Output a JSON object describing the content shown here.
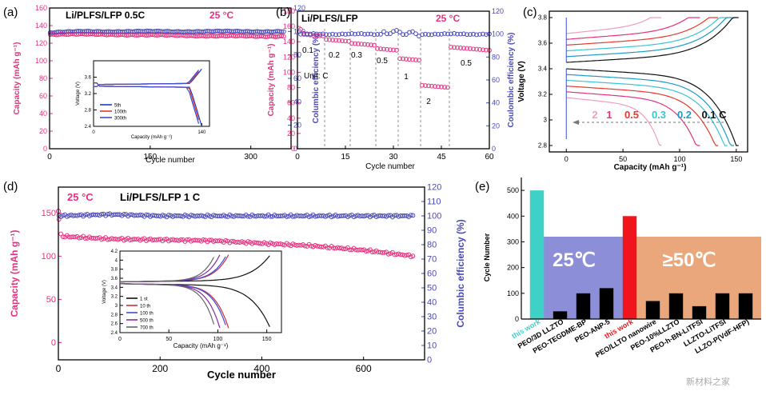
{
  "colors": {
    "magenta": "#e8317e",
    "blue": "#4a4ab8",
    "black": "#000000",
    "teal": "#3fd1c6",
    "red": "#f0151c",
    "blue_band": "#8c8fd8",
    "orange_band": "#e9a77b",
    "gray": "#777777"
  },
  "panels": {
    "a": {
      "label": "(a)",
      "title": "Li/PLFS/LFP  0.5C",
      "temp": "25 °C",
      "xlabel": "Cycle number",
      "ylabel_left": "Capacity (mAh g⁻¹)",
      "ylabel_right": "Columbic efficiency (%)",
      "inset": {
        "xlabel": "Capacity (mAh g⁻¹)",
        "ylabel": "Voltage (V)",
        "legend": [
          "5th",
          "100th",
          "300th"
        ]
      }
    },
    "b": {
      "label": "(b)",
      "title": "Li/PLFS/LFP",
      "temp": "25 °C",
      "unit": "Unit: C",
      "rates": [
        "0.1",
        "0.2",
        "0.3",
        "0.5",
        "1",
        "2",
        "0.5"
      ],
      "xlabel": "Cycle number",
      "ylabel_left": "Capacity (mAh g⁻¹)",
      "ylabel_right": "Coulombic efficiency (%)"
    },
    "c": {
      "label": "(c)",
      "xlabel": "Capacity (mAh g⁻¹)",
      "ylabel": "Voltage (V)",
      "rates": [
        "2",
        "1",
        "0.5",
        "0.3",
        "0.2",
        "0.1 C"
      ]
    },
    "d": {
      "label": "(d)",
      "temp": "25 °C",
      "title": "Li/PLFS/LFP   1 C",
      "xlabel": "Cycle number",
      "ylabel_left": "Capacity (mAh g⁻¹)",
      "ylabel_right": "Columbic efficiency (%)",
      "inset": {
        "xlabel": "Capacity (mAh g⁻¹)",
        "ylabel": "Voltage (V)",
        "legend": [
          "1 st",
          "10 th",
          "100 th",
          "500 th",
          "700 th"
        ]
      }
    },
    "e": {
      "label": "(e)",
      "ylabel": "Cycle Number",
      "band_25": "25℃",
      "band_50": "≥50℃",
      "categories": [
        "this work",
        "PEO/3D LLZTO",
        "PEO-TEGDME-BP",
        "PEO-ANP-5",
        "this work",
        "PEO/LLTO nanowire",
        "PEO-10%LLZTO",
        "PEO-h-BN-LiTFSI",
        "LLZTO-LiTFSI",
        "LLZO-P(VdF-HFP)"
      ]
    }
  },
  "watermark": "新材料之家",
  "chart_data": [
    {
      "type": "scatter",
      "panel": "a",
      "title": "Li/PLFS/LFP 0.5C",
      "xlabel": "Cycle number",
      "ylabel": "Capacity (mAh g⁻¹)",
      "y2label": "Columbic efficiency (%)",
      "xlim": [
        0,
        360
      ],
      "ylim": [
        0,
        160
      ],
      "y2lim": [
        0,
        120
      ],
      "x_ticks": [
        0,
        150,
        300
      ],
      "y_ticks": [
        0,
        20,
        40,
        60,
        80,
        100,
        120,
        140,
        160
      ],
      "y2_ticks": [
        0,
        20,
        40,
        60,
        80,
        100,
        120
      ],
      "series": [
        {
          "name": "Capacity",
          "axis": "left",
          "x": [
            0,
            50,
            100,
            150,
            200,
            250,
            300,
            350
          ],
          "values": [
            130,
            130,
            130,
            129,
            129,
            128,
            128,
            128
          ]
        },
        {
          "name": "Efficiency",
          "axis": "right",
          "x": [
            0,
            50,
            100,
            150,
            200,
            250,
            300,
            350
          ],
          "values": [
            99,
            100,
            100,
            100,
            100,
            100,
            100,
            100
          ]
        }
      ]
    },
    {
      "type": "line",
      "panel": "a-inset",
      "xlabel": "Capacity (mAh g⁻¹)",
      "ylabel": "Voltage (V)",
      "xlim": [
        0,
        150
      ],
      "ylim": [
        2.4,
        4.0
      ],
      "x_ticks": [
        0,
        140
      ],
      "y_ticks": [
        2.4,
        2.8,
        3.2,
        3.6
      ],
      "series": [
        {
          "name": "5th"
        },
        {
          "name": "100th"
        },
        {
          "name": "300th"
        }
      ]
    },
    {
      "type": "scatter",
      "panel": "b",
      "title": "Li/PLFS/LFP",
      "xlabel": "Cycle number",
      "ylabel": "Capacity (mAh g⁻¹)",
      "y2label": "Coulombic efficiency (%)",
      "xlim": [
        0,
        60
      ],
      "ylim": [
        0,
        180
      ],
      "y2lim": [
        0,
        120
      ],
      "x_ticks": [
        0,
        15,
        30,
        45,
        60
      ],
      "y_ticks": [
        0,
        20,
        40,
        60,
        80,
        100,
        120,
        140,
        160,
        180
      ],
      "y2_ticks": [
        0,
        20,
        40,
        60,
        80,
        100,
        120
      ],
      "rate_steps": [
        {
          "rate": "0.1",
          "x": [
            1,
            8
          ],
          "capacity": 150
        },
        {
          "rate": "0.2",
          "x": [
            9,
            16
          ],
          "capacity": 143
        },
        {
          "rate": "0.3",
          "x": [
            17,
            24
          ],
          "capacity": 138
        },
        {
          "rate": "0.5",
          "x": [
            25,
            31
          ],
          "capacity": 131
        },
        {
          "rate": "1",
          "x": [
            32,
            38
          ],
          "capacity": 118
        },
        {
          "rate": "2",
          "x": [
            39,
            47
          ],
          "capacity": 83
        },
        {
          "rate": "0.5",
          "x": [
            48,
            60
          ],
          "capacity": 133
        }
      ],
      "series": [
        {
          "name": "Capacity",
          "axis": "left"
        },
        {
          "name": "Efficiency",
          "axis": "right",
          "value": 100
        }
      ]
    },
    {
      "type": "line",
      "panel": "c",
      "xlabel": "Capacity (mAh g⁻¹)",
      "ylabel": "Voltage (V)",
      "xlim": [
        -15,
        160
      ],
      "ylim": [
        2.75,
        3.85
      ],
      "x_ticks": [
        0,
        50,
        100,
        150
      ],
      "y_ticks": [
        2.8,
        3.0,
        3.2,
        3.4,
        3.6,
        3.8
      ],
      "series": [
        {
          "name": "2",
          "capacity": 85
        },
        {
          "name": "1",
          "capacity": 118
        },
        {
          "name": "0.5",
          "capacity": 135
        },
        {
          "name": "0.3",
          "capacity": 143
        },
        {
          "name": "0.2",
          "capacity": 148
        },
        {
          "name": "0.1 C",
          "capacity": 153
        }
      ]
    },
    {
      "type": "scatter",
      "panel": "d",
      "title": "Li/PLFS/LFP 1 C",
      "xlabel": "Cycle number",
      "ylabel": "Capacity (mAh g⁻¹)",
      "y2label": "Columbic efficiency (%)",
      "xlim": [
        0,
        720
      ],
      "ylim": [
        -20,
        180
      ],
      "y2lim": [
        0,
        120
      ],
      "x_ticks": [
        0,
        200,
        400,
        600
      ],
      "y_ticks": [
        0,
        50,
        100,
        150
      ],
      "y2_ticks": [
        0,
        10,
        20,
        30,
        40,
        50,
        60,
        70,
        80,
        90,
        100,
        110,
        120
      ],
      "series": [
        {
          "name": "Capacity",
          "axis": "left",
          "x": [
            0,
            3,
            10,
            100,
            200,
            300,
            400,
            500,
            600,
            700
          ],
          "values": [
            152,
            125,
            123,
            120,
            119,
            118,
            115,
            112,
            107,
            100
          ]
        },
        {
          "name": "Efficiency",
          "axis": "right",
          "x": [
            0,
            100,
            200,
            300,
            400,
            500,
            600,
            700
          ],
          "values": [
            100,
            101,
            100,
            100,
            100,
            100,
            100,
            100
          ]
        }
      ]
    },
    {
      "type": "line",
      "panel": "d-inset",
      "xlabel": "Capacity (mAh g⁻¹)",
      "ylabel": "Voltage (V)",
      "xlim": [
        0,
        165
      ],
      "ylim": [
        2.4,
        4.2
      ],
      "x_ticks": [
        0,
        50,
        100,
        150
      ],
      "y_ticks": [
        2.4,
        2.6,
        2.8,
        3.0,
        3.2,
        3.4,
        3.6,
        3.8,
        4.0,
        4.2
      ],
      "series": [
        {
          "name": "1 st"
        },
        {
          "name": "10 th"
        },
        {
          "name": "100 th"
        },
        {
          "name": "500 th"
        },
        {
          "name": "700 th"
        }
      ]
    },
    {
      "type": "bar",
      "panel": "e",
      "ylabel": "Cycle Number",
      "ylim": [
        0,
        550
      ],
      "y_ticks": [
        0,
        100,
        200,
        300,
        400,
        500
      ],
      "categories": [
        "this work",
        "PEO/3D LLZTO",
        "PEO-TEGDME-BP",
        "PEO-ANP-5",
        "this work",
        "PEO/LLTO nanowire",
        "PEO-10%LLZTO",
        "PEO-h-BN-LiTFSI",
        "LLZTO-LiTFSI",
        "LLZO-P(VdF-HFP)"
      ],
      "values": [
        500,
        30,
        100,
        120,
        400,
        70,
        100,
        50,
        100,
        100
      ],
      "bands": [
        {
          "label": "25℃",
          "value": 320
        },
        {
          "label": "≥50℃",
          "value": 320
        }
      ]
    }
  ]
}
